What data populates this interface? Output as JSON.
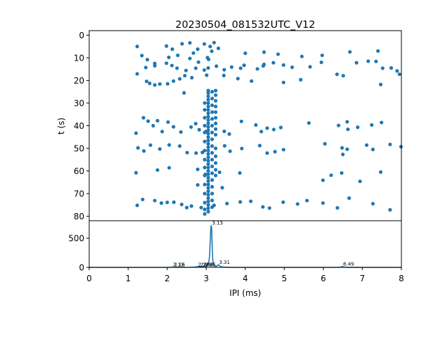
{
  "chart_data": [
    {
      "type": "scatter",
      "title": "20230504_081532UTC_V12",
      "xlabel": "",
      "ylabel": "t (s)",
      "xlim": [
        0,
        8
      ],
      "ylim": [
        82,
        -2
      ],
      "y_inverted": true,
      "yticks": [
        0,
        10,
        20,
        30,
        40,
        50,
        60,
        70,
        80
      ],
      "grid": false,
      "marker_color": "#1f77b4",
      "points": [
        [
          1.23,
          5.0
        ],
        [
          1.35,
          9.0
        ],
        [
          1.49,
          10.8
        ],
        [
          1.68,
          12.5
        ],
        [
          1.98,
          4.8
        ],
        [
          2.13,
          6.2
        ],
        [
          2.27,
          8.9
        ],
        [
          2.38,
          3.8
        ],
        [
          2.58,
          3.4
        ],
        [
          2.67,
          7.9
        ],
        [
          2.78,
          6.2
        ],
        [
          2.8,
          11.9
        ],
        [
          2.95,
          3.9
        ],
        [
          3.03,
          9.9
        ],
        [
          3.1,
          5.0
        ],
        [
          3.14,
          7.1
        ],
        [
          3.2,
          3.3
        ],
        [
          3.31,
          5.8
        ],
        [
          3.06,
          10.7
        ],
        [
          2.58,
          10.3
        ],
        [
          2.04,
          9.8
        ],
        [
          1.68,
          13.5
        ],
        [
          1.98,
          12.4
        ],
        [
          2.12,
          13.4
        ],
        [
          2.25,
          14.6
        ],
        [
          2.48,
          15.6
        ],
        [
          2.73,
          14.6
        ],
        [
          2.95,
          15.4
        ],
        [
          3.05,
          14.5
        ],
        [
          3.26,
          13.7
        ],
        [
          3.46,
          15.3
        ],
        [
          3.65,
          14.1
        ],
        [
          3.88,
          14.6
        ],
        [
          3.97,
          13.3
        ],
        [
          4.31,
          14.9
        ],
        [
          4.46,
          13.6
        ],
        [
          4.48,
          12.9
        ],
        [
          4.72,
          12.2
        ],
        [
          4.98,
          13.2
        ],
        [
          5.2,
          14.2
        ],
        [
          5.66,
          14.0
        ],
        [
          5.95,
          12.0
        ],
        [
          6.35,
          17.3
        ],
        [
          6.51,
          17.9
        ],
        [
          6.85,
          12.2
        ],
        [
          7.15,
          11.5
        ],
        [
          7.35,
          11.6
        ],
        [
          7.52,
          14.6
        ],
        [
          7.74,
          14.5
        ],
        [
          7.89,
          15.8
        ],
        [
          7.95,
          17.3
        ],
        [
          7.47,
          21.8
        ],
        [
          5.42,
          19.7
        ],
        [
          4.98,
          20.9
        ],
        [
          4.16,
          20.3
        ],
        [
          3.81,
          19.2
        ],
        [
          3.45,
          17.8
        ],
        [
          3.01,
          17.7
        ],
        [
          2.63,
          18.8
        ],
        [
          2.45,
          17.9
        ],
        [
          2.32,
          19.3
        ],
        [
          2.16,
          20.3
        ],
        [
          2.01,
          21.5
        ],
        [
          1.81,
          21.6
        ],
        [
          1.68,
          22.0
        ],
        [
          1.55,
          21.3
        ],
        [
          1.47,
          20.4
        ],
        [
          1.23,
          17.1
        ],
        [
          1.45,
          14.3
        ],
        [
          2.43,
          25.5
        ],
        [
          4.0,
          8.0
        ],
        [
          4.48,
          7.5
        ],
        [
          4.84,
          8.4
        ],
        [
          5.45,
          9.4
        ],
        [
          5.97,
          8.9
        ],
        [
          6.68,
          7.4
        ],
        [
          7.4,
          7.0
        ],
        [
          1.2,
          43.3
        ],
        [
          1.39,
          36.5
        ],
        [
          1.51,
          38.0
        ],
        [
          1.64,
          40.0
        ],
        [
          1.75,
          37.8
        ],
        [
          1.87,
          42.6
        ],
        [
          2.02,
          38.4
        ],
        [
          2.16,
          40.5
        ],
        [
          2.35,
          42.8
        ],
        [
          2.61,
          40.6
        ],
        [
          2.73,
          39.1
        ],
        [
          2.82,
          41.8
        ],
        [
          2.99,
          42.6
        ],
        [
          3.46,
          42.5
        ],
        [
          3.59,
          43.7
        ],
        [
          3.9,
          38.1
        ],
        [
          4.27,
          39.7
        ],
        [
          4.41,
          42.6
        ],
        [
          4.56,
          41.1
        ],
        [
          4.73,
          41.7
        ],
        [
          4.91,
          40.8
        ],
        [
          5.63,
          38.8
        ],
        [
          6.39,
          39.9
        ],
        [
          6.61,
          38.3
        ],
        [
          6.63,
          41.6
        ],
        [
          6.88,
          40.7
        ],
        [
          7.24,
          39.7
        ],
        [
          7.49,
          38.6
        ],
        [
          1.25,
          49.8
        ],
        [
          1.4,
          51.2
        ],
        [
          1.57,
          48.6
        ],
        [
          1.81,
          50.3
        ],
        [
          2.05,
          48.5
        ],
        [
          2.32,
          49.0
        ],
        [
          2.51,
          51.9
        ],
        [
          2.74,
          52.1
        ],
        [
          2.9,
          51.8
        ],
        [
          3.47,
          48.9
        ],
        [
          3.61,
          51.3
        ],
        [
          3.91,
          50.1
        ],
        [
          4.37,
          48.8
        ],
        [
          4.56,
          52.1
        ],
        [
          4.76,
          51.5
        ],
        [
          4.98,
          50.6
        ],
        [
          6.04,
          48.0
        ],
        [
          6.48,
          49.8
        ],
        [
          6.5,
          52.7
        ],
        [
          6.61,
          50.4
        ],
        [
          7.11,
          48.6
        ],
        [
          7.27,
          50.5
        ],
        [
          7.71,
          48.3
        ],
        [
          7.99,
          49.3
        ],
        [
          1.2,
          60.8
        ],
        [
          1.75,
          59.6
        ],
        [
          2.05,
          58.6
        ],
        [
          2.78,
          59.3
        ],
        [
          2.98,
          61.5
        ],
        [
          3.34,
          60.6
        ],
        [
          3.86,
          60.9
        ],
        [
          5.99,
          64.1
        ],
        [
          6.2,
          61.9
        ],
        [
          6.47,
          60.9
        ],
        [
          6.94,
          64.6
        ],
        [
          7.47,
          60.5
        ],
        [
          2.78,
          66.2
        ],
        [
          3.41,
          67.4
        ],
        [
          1.23,
          75.2
        ],
        [
          1.37,
          72.6
        ],
        [
          1.68,
          73.1
        ],
        [
          1.85,
          74.2
        ],
        [
          2.0,
          73.9
        ],
        [
          2.17,
          73.8
        ],
        [
          2.37,
          74.8
        ],
        [
          2.5,
          76.2
        ],
        [
          2.62,
          75.5
        ],
        [
          2.87,
          76.2
        ],
        [
          3.2,
          75.2
        ],
        [
          3.53,
          74.4
        ],
        [
          3.87,
          73.7
        ],
        [
          4.14,
          73.4
        ],
        [
          4.45,
          75.9
        ],
        [
          4.62,
          76.4
        ],
        [
          4.97,
          73.8
        ],
        [
          5.34,
          74.6
        ],
        [
          5.58,
          73.1
        ],
        [
          5.99,
          74.2
        ],
        [
          6.36,
          76.3
        ],
        [
          6.66,
          72.0
        ],
        [
          7.27,
          74.5
        ],
        [
          7.71,
          77.2
        ]
      ],
      "column_points": [
        [
          3.05,
          24.5
        ],
        [
          3.05,
          25.5
        ],
        [
          3.05,
          27.0
        ],
        [
          3.05,
          28.5
        ],
        [
          3.05,
          30.0
        ],
        [
          3.05,
          31.5
        ],
        [
          3.05,
          33.0
        ],
        [
          3.05,
          34.5
        ],
        [
          3.05,
          36.0
        ],
        [
          3.05,
          37.5
        ],
        [
          3.05,
          39.0
        ],
        [
          3.05,
          40.5
        ],
        [
          3.05,
          42.0
        ],
        [
          3.05,
          43.5
        ],
        [
          3.05,
          45.0
        ],
        [
          3.05,
          46.5
        ],
        [
          3.05,
          48.0
        ],
        [
          3.05,
          49.5
        ],
        [
          3.05,
          51.0
        ],
        [
          3.05,
          52.5
        ],
        [
          3.05,
          54.0
        ],
        [
          3.05,
          55.5
        ],
        [
          3.05,
          57.0
        ],
        [
          3.05,
          58.5
        ],
        [
          3.05,
          60.0
        ],
        [
          3.05,
          61.5
        ],
        [
          3.05,
          63.0
        ],
        [
          3.05,
          64.5
        ],
        [
          3.05,
          66.0
        ],
        [
          3.05,
          67.5
        ],
        [
          3.05,
          69.0
        ],
        [
          3.05,
          70.5
        ],
        [
          3.05,
          72.0
        ],
        [
          3.05,
          73.5
        ],
        [
          3.05,
          75.0
        ],
        [
          3.05,
          76.5
        ],
        [
          3.05,
          78.0
        ],
        [
          3.15,
          25.0
        ],
        [
          3.15,
          28.0
        ],
        [
          3.15,
          31.0
        ],
        [
          3.15,
          34.0
        ],
        [
          3.15,
          37.0
        ],
        [
          3.15,
          40.0
        ],
        [
          3.15,
          43.0
        ],
        [
          3.15,
          46.0
        ],
        [
          3.15,
          49.0
        ],
        [
          3.15,
          52.0
        ],
        [
          3.15,
          55.0
        ],
        [
          3.15,
          58.0
        ],
        [
          3.15,
          61.0
        ],
        [
          3.15,
          64.0
        ],
        [
          3.15,
          67.0
        ],
        [
          3.15,
          70.0
        ],
        [
          3.15,
          73.0
        ],
        [
          3.15,
          76.0
        ],
        [
          3.24,
          24.5
        ],
        [
          3.24,
          26.5
        ],
        [
          3.24,
          29.0
        ],
        [
          3.24,
          31.5
        ],
        [
          3.24,
          34.0
        ],
        [
          3.24,
          36.5
        ],
        [
          3.24,
          39.0
        ],
        [
          3.24,
          41.5
        ],
        [
          3.24,
          44.0
        ],
        [
          3.24,
          50.0
        ],
        [
          3.24,
          53.5
        ],
        [
          3.24,
          56.5
        ],
        [
          3.24,
          59.5
        ],
        [
          3.24,
          62.0
        ],
        [
          2.96,
          30.0
        ],
        [
          2.96,
          33.0
        ],
        [
          2.96,
          36.5
        ],
        [
          2.96,
          40.0
        ],
        [
          2.96,
          43.0
        ],
        [
          2.96,
          47.0
        ],
        [
          2.96,
          51.0
        ],
        [
          2.96,
          55.0
        ],
        [
          2.96,
          58.5
        ],
        [
          2.96,
          62.0
        ],
        [
          2.96,
          66.0
        ],
        [
          2.96,
          70.0
        ],
        [
          2.96,
          74.0
        ],
        [
          2.96,
          77.0
        ],
        [
          2.96,
          79.0
        ]
      ]
    },
    {
      "type": "line",
      "xlabel": "IPI (ms)",
      "ylabel": "",
      "xlim": [
        0,
        8
      ],
      "ylim": [
        0,
        800
      ],
      "xticks": [
        0,
        1,
        2,
        3,
        4,
        5,
        6,
        7,
        8
      ],
      "yticks": [
        0,
        500
      ],
      "grid": false,
      "line_color": "#1f77b4",
      "x": [
        0.0,
        0.5,
        1.0,
        1.5,
        2.0,
        2.1,
        2.13,
        2.16,
        2.2,
        2.5,
        2.7,
        2.75,
        2.8,
        2.85,
        2.9,
        2.95,
        3.0,
        3.05,
        3.08,
        3.1,
        3.11,
        3.12,
        3.13,
        3.14,
        3.15,
        3.16,
        3.18,
        3.2,
        3.25,
        3.29,
        3.31,
        3.33,
        3.37,
        3.45,
        3.6,
        4.0,
        5.0,
        6.0,
        6.4,
        6.46,
        6.49,
        6.52,
        6.6,
        7.0,
        8.0
      ],
      "y": [
        0,
        0,
        0,
        0,
        0,
        2,
        5,
        3,
        1,
        0,
        6,
        10,
        13,
        12,
        15,
        17,
        13,
        40,
        160,
        420,
        610,
        700,
        720,
        640,
        400,
        180,
        50,
        25,
        15,
        30,
        45,
        35,
        12,
        4,
        1,
        0,
        0,
        0,
        1,
        6,
        18,
        6,
        1,
        0,
        0
      ],
      "peak_labels": [
        {
          "x": 2.13,
          "y": 5,
          "text": "2.13"
        },
        {
          "x": 2.16,
          "y": 5,
          "text": "2.16"
        },
        {
          "x": 2.77,
          "y": 6,
          "text": "2.77"
        },
        {
          "x": 2.83,
          "y": 6,
          "text": "2.83"
        },
        {
          "x": 2.9,
          "y": 6,
          "text": "2.90"
        },
        {
          "x": 2.95,
          "y": 6,
          "text": "2.95"
        },
        {
          "x": 3.13,
          "y": 720,
          "text": "3.13"
        },
        {
          "x": 3.31,
          "y": 45,
          "text": "3.31"
        },
        {
          "x": 6.49,
          "y": 18,
          "text": "6.49"
        }
      ]
    }
  ]
}
